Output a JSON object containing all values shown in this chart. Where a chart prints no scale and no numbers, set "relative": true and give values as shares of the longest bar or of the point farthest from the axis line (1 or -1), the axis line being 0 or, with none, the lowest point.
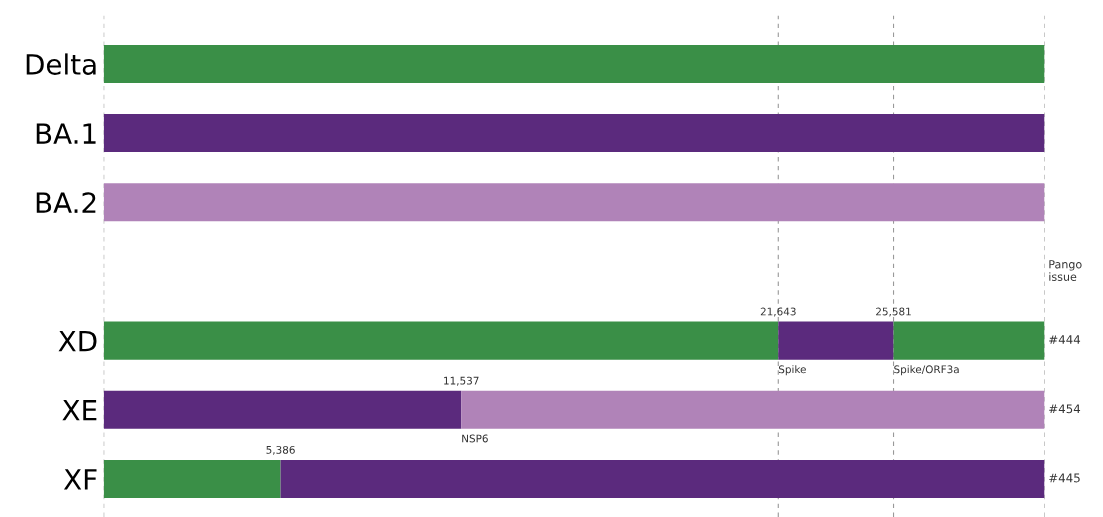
{
  "chart_data": {
    "type": "bar",
    "orientation": "horizontal",
    "stacked": true,
    "relative": true,
    "categories": [
      "Delta",
      "BA.1",
      "BA.2",
      null,
      "XD",
      "XE",
      "XF"
    ],
    "series": [
      {
        "values": [
          1,
          1,
          1,
          null,
          0.717,
          0.38,
          0.188
        ],
        "colors": [
          "#3a8f47",
          "#5b2a7d",
          "#b083b8",
          null,
          "#3a8f47",
          "#5b2a7d",
          "#3a8f47"
        ]
      },
      {
        "values": [
          null,
          null,
          null,
          null,
          0.1225,
          0.62,
          0.812
        ],
        "colors": [
          null,
          null,
          null,
          null,
          "#5b2a7d",
          "#b083b8",
          "#5b2a7d"
        ]
      },
      {
        "values": [
          null,
          null,
          null,
          null,
          0.1605,
          null,
          null
        ],
        "colors": [
          null,
          null,
          null,
          null,
          "#3a8f47",
          null,
          null
        ]
      }
    ],
    "ref_lines": [
      {
        "axis": "x",
        "value": 0,
        "color": "#999999",
        "line_style": "dashed"
      },
      {
        "axis": "x",
        "value": 0.717,
        "color": "#999999",
        "line_style": "dashed"
      },
      {
        "axis": "x",
        "value": 0.8395,
        "color": "#999999",
        "line_style": "dashed"
      },
      {
        "axis": "x",
        "value": 1,
        "color": "#999999",
        "line_style": "dashed"
      }
    ],
    "annotations": [
      "Pango issue",
      {
        "text": "21,643",
        "x": 0.717,
        "y": "XD"
      },
      {
        "text": "Spike",
        "x": 0.717,
        "y": "XD"
      },
      {
        "text": "25,581",
        "x": 0.8395,
        "y": "XD"
      },
      {
        "text": "Spike/ORF3a",
        "x": 0.8395,
        "y": "XD"
      },
      {
        "text": "#444",
        "x": 1,
        "y": "XD"
      },
      {
        "text": "11,537",
        "x": 0.38,
        "y": "XE"
      },
      {
        "text": "NSP6",
        "x": 0.38,
        "y": "XE"
      },
      {
        "text": "#454",
        "x": 1,
        "y": "XE"
      },
      {
        "text": "5,386",
        "x": 0.188,
        "y": "XF"
      },
      {
        "text": "#445",
        "x": 1,
        "y": "XF"
      }
    ]
  }
}
